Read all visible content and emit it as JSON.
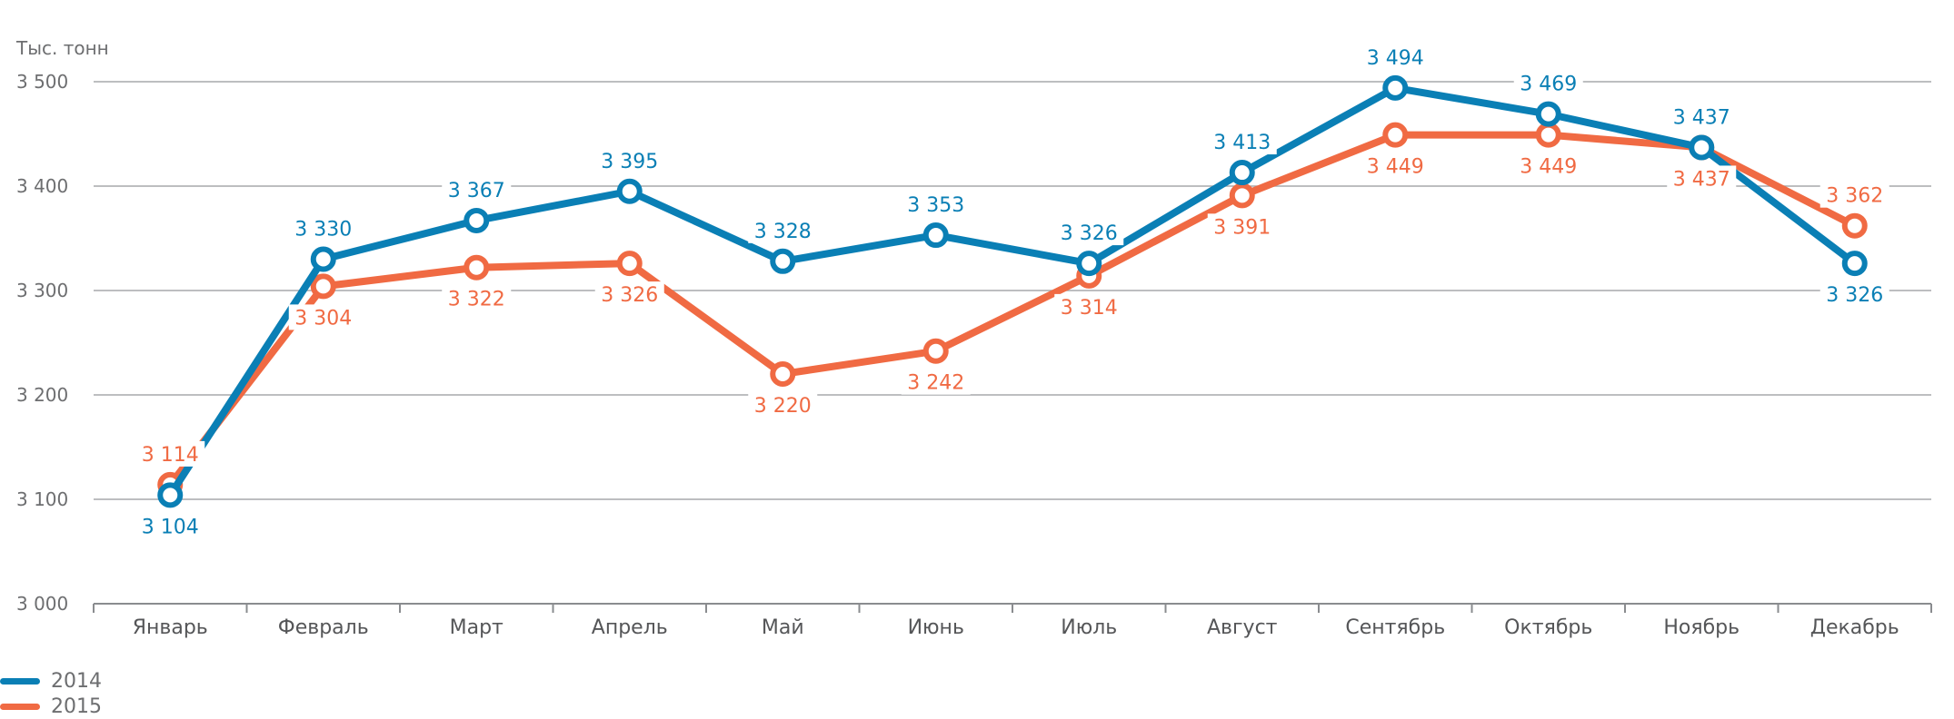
{
  "chart_data": {
    "type": "line",
    "unit_label": "Тыс. тонн",
    "categories": [
      "Январь",
      "Февраль",
      "Март",
      "Апрель",
      "Май",
      "Июнь",
      "Июль",
      "Август",
      "Сентябрь",
      "Октябрь",
      "Ноябрь",
      "Декабрь"
    ],
    "y_ticks": [
      "3 000",
      "3 100",
      "3 200",
      "3 300",
      "3 400",
      "3 500"
    ],
    "ylim": [
      3000,
      3500
    ],
    "grid": true,
    "legend_position": "bottom-left",
    "series": [
      {
        "name": "2014",
        "color": "#0a7fb5",
        "values": [
          3104,
          3330,
          3367,
          3395,
          3328,
          3353,
          3326,
          3413,
          3494,
          3469,
          3437,
          3326
        ],
        "labels": [
          "3 104",
          "3 330",
          "3 367",
          "3 395",
          "3 328",
          "3 353",
          "3 326",
          "3 413",
          "3 494",
          "3 469",
          "3 437",
          "3 326"
        ]
      },
      {
        "name": "2015",
        "color": "#f06a43",
        "values": [
          3114,
          3304,
          3322,
          3326,
          3220,
          3242,
          3314,
          3391,
          3449,
          3449,
          3437,
          3362
        ],
        "labels": [
          "3 114",
          "3 304",
          "3 322",
          "3 326",
          "3 220",
          "3 242",
          "3 314",
          "3 391",
          "3 449",
          "3 449",
          "3 437",
          "3 362"
        ]
      }
    ]
  }
}
